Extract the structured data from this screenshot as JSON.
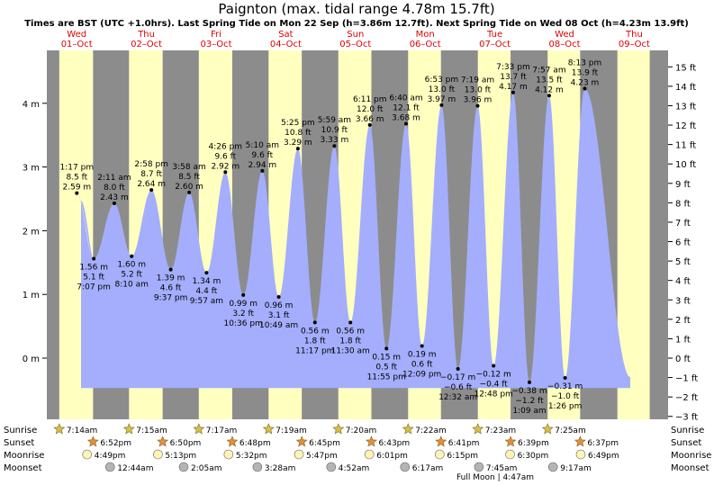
{
  "chart_data": {
    "type": "area",
    "title": "Paignton (max. tidal range 4.78m 15.7ft)",
    "subtitle": "Times are BST (UTC +1.0hrs). Last Spring Tide on Mon 22 Sep (h=3.86m 12.7ft). Next Spring Tide on Wed 08 Oct (h=4.23m 13.9ft)",
    "days": [
      {
        "dow": "Wed",
        "date": "01–Oct"
      },
      {
        "dow": "Thu",
        "date": "02–Oct"
      },
      {
        "dow": "Fri",
        "date": "03–Oct"
      },
      {
        "dow": "Sat",
        "date": "04–Oct"
      },
      {
        "dow": "Sun",
        "date": "05–Oct"
      },
      {
        "dow": "Mon",
        "date": "06–Oct"
      },
      {
        "dow": "Tue",
        "date": "07–Oct"
      },
      {
        "dow": "Wed",
        "date": "08–Oct"
      },
      {
        "dow": "Thu",
        "date": "09–Oct"
      }
    ],
    "y_left": {
      "unit": "m",
      "ticks": [
        "0 m",
        "1 m",
        "2 m",
        "3 m",
        "4 m"
      ],
      "values": [
        0,
        1,
        2,
        3,
        4
      ]
    },
    "y_right": {
      "unit": "ft",
      "ticks": [
        "−3 ft",
        "−2 ft",
        "−1 ft",
        "0 ft",
        "1 ft",
        "2 ft",
        "3 ft",
        "4 ft",
        "5 ft",
        "6 ft",
        "7 ft",
        "8 ft",
        "9 ft",
        "10 ft",
        "11 ft",
        "12 ft",
        "13 ft",
        "14 ft",
        "15 ft"
      ],
      "values": [
        -3,
        -2,
        -1,
        0,
        1,
        2,
        3,
        4,
        5,
        6,
        7,
        8,
        9,
        10,
        11,
        12,
        13,
        14,
        15
      ]
    },
    "ylim_m": [
      -0.92,
      4.8
    ],
    "tides": [
      {
        "type": "high",
        "day": 0,
        "time": "1:17 pm",
        "h": 2.59,
        "ft": "8.5 ft",
        "m_label": "2.59 m"
      },
      {
        "type": "low",
        "day": 0,
        "time": "7:07 pm",
        "h": 1.56,
        "ft": "5.1 ft",
        "m_label": "1.56 m"
      },
      {
        "type": "high",
        "day": 1,
        "time": "2:11 am",
        "h": 2.43,
        "ft": "8.0 ft",
        "m_label": "2.43 m"
      },
      {
        "type": "low",
        "day": 1,
        "time": "8:10 am",
        "h": 1.6,
        "ft": "5.2 ft",
        "m_label": "1.60 m"
      },
      {
        "type": "high",
        "day": 1,
        "time": "2:58 pm",
        "h": 2.64,
        "ft": "8.7 ft",
        "m_label": "2.64 m"
      },
      {
        "type": "low",
        "day": 1,
        "time": "9:37 pm",
        "h": 1.39,
        "ft": "4.6 ft",
        "m_label": "1.39 m"
      },
      {
        "type": "high",
        "day": 2,
        "time": "3:58 am",
        "h": 2.6,
        "ft": "8.5 ft",
        "m_label": "2.60 m"
      },
      {
        "type": "low",
        "day": 2,
        "time": "9:57 am",
        "h": 1.34,
        "ft": "4.4 ft",
        "m_label": "1.34 m"
      },
      {
        "type": "high",
        "day": 2,
        "time": "4:26 pm",
        "h": 2.92,
        "ft": "9.6 ft",
        "m_label": "2.92 m"
      },
      {
        "type": "low",
        "day": 2,
        "time": "10:36 pm",
        "h": 0.99,
        "ft": "3.2 ft",
        "m_label": "0.99 m"
      },
      {
        "type": "high",
        "day": 3,
        "time": "5:10 am",
        "h": 2.94,
        "ft": "9.6 ft",
        "m_label": "2.94 m"
      },
      {
        "type": "low",
        "day": 3,
        "time": "10:49 am",
        "h": 0.96,
        "ft": "3.1 ft",
        "m_label": "0.96 m"
      },
      {
        "type": "high",
        "day": 3,
        "time": "5:25 pm",
        "h": 3.29,
        "ft": "10.8 ft",
        "m_label": "3.29 m"
      },
      {
        "type": "low",
        "day": 3,
        "time": "11:17 pm",
        "h": 0.56,
        "ft": "1.8 ft",
        "m_label": "0.56 m"
      },
      {
        "type": "high",
        "day": 4,
        "time": "5:59 am",
        "h": 3.33,
        "ft": "10.9 ft",
        "m_label": "3.33 m"
      },
      {
        "type": "low",
        "day": 4,
        "time": "11:30 am",
        "h": 0.56,
        "ft": "1.8 ft",
        "m_label": "0.56 m"
      },
      {
        "type": "high",
        "day": 4,
        "time": "6:11 pm",
        "h": 3.66,
        "ft": "12.0 ft",
        "m_label": "3.66 m"
      },
      {
        "type": "low",
        "day": 4,
        "time": "11:55 pm",
        "h": 0.15,
        "ft": "0.5 ft",
        "m_label": "0.15 m"
      },
      {
        "type": "high",
        "day": 5,
        "time": "6:40 am",
        "h": 3.68,
        "ft": "12.1 ft",
        "m_label": "3.68 m"
      },
      {
        "type": "low",
        "day": 5,
        "time": "12:09 pm",
        "h": 0.19,
        "ft": "0.6 ft",
        "m_label": "0.19 m"
      },
      {
        "type": "high",
        "day": 5,
        "time": "6:53 pm",
        "h": 3.97,
        "ft": "13.0 ft",
        "m_label": "3.97 m"
      },
      {
        "type": "low",
        "day": 6,
        "time": "12:32 am",
        "h": -0.17,
        "ft": "−0.6 ft",
        "m_label": "−0.17 m"
      },
      {
        "type": "high",
        "day": 6,
        "time": "7:19 am",
        "h": 3.96,
        "ft": "13.0 ft",
        "m_label": "3.96 m"
      },
      {
        "type": "low",
        "day": 6,
        "time": "12:48 pm",
        "h": -0.12,
        "ft": "−0.4 ft",
        "m_label": "−0.12 m"
      },
      {
        "type": "high",
        "day": 6,
        "time": "7:33 pm",
        "h": 4.17,
        "ft": "13.7 ft",
        "m_label": "4.17 m"
      },
      {
        "type": "low",
        "day": 7,
        "time": "1:09 am",
        "h": -0.38,
        "ft": "−1.2 ft",
        "m_label": "−0.38 m"
      },
      {
        "type": "high",
        "day": 7,
        "time": "7:57 am",
        "h": 4.12,
        "ft": "13.5 ft",
        "m_label": "4.12 m"
      },
      {
        "type": "low",
        "day": 7,
        "time": "1:26 pm",
        "h": -0.31,
        "ft": "−1.0 ft",
        "m_label": "−0.31 m"
      },
      {
        "type": "high",
        "day": 7,
        "time": "8:13 pm",
        "h": 4.23,
        "ft": "13.9 ft",
        "m_label": "4.23 m"
      }
    ],
    "sunrise": [
      "7:14am",
      "7:15am",
      "7:17am",
      "7:19am",
      "7:20am",
      "7:22am",
      "7:23am",
      "7:25am"
    ],
    "sunset": [
      "6:52pm",
      "6:50pm",
      "6:48pm",
      "6:45pm",
      "6:43pm",
      "6:41pm",
      "6:39pm",
      "6:37pm"
    ],
    "moonrise": [
      "4:49pm",
      "5:13pm",
      "5:32pm",
      "5:47pm",
      "6:01pm",
      "6:15pm",
      "6:30pm",
      "6:49pm"
    ],
    "moonset": [
      "12:44am",
      "2:05am",
      "3:28am",
      "4:52am",
      "6:17am",
      "7:45am",
      "9:17am"
    ],
    "row_labels": {
      "sunrise": "Sunrise",
      "sunset": "Sunset",
      "moonrise": "Moonrise",
      "moonset": "Moonset"
    },
    "moon_phase_note": "Full Moon | 4:47am",
    "colors": {
      "night": "#8c8c8c",
      "day": "#ffffc0",
      "water": "#a4aefc",
      "day_text": "#e00000",
      "star_sunrise": "#d8c048",
      "star_sunset": "#e88c3c",
      "moon_rise": "#fff4b8",
      "moon_set": "#b4b4b4"
    }
  }
}
